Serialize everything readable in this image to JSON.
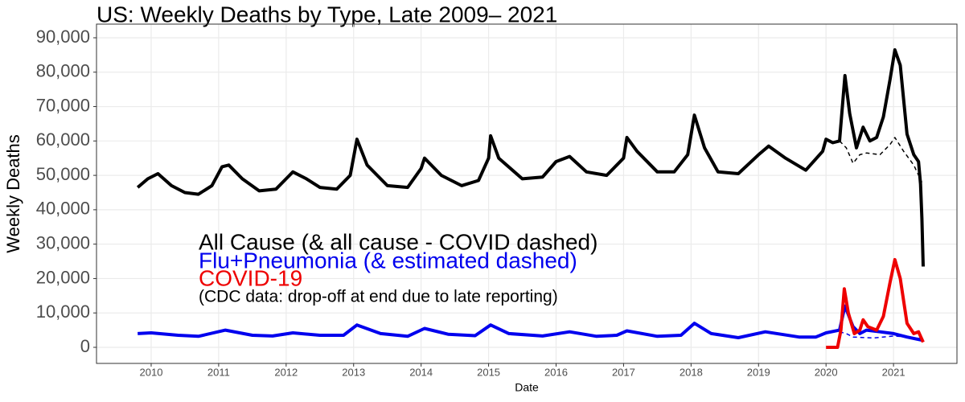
{
  "chart_data": {
    "type": "line",
    "title": "US: Weekly Deaths by Type, Late 2009– 2021",
    "x_label": "Date",
    "y_label": "Weekly Deaths",
    "xlim": [
      2009.19,
      2021.94
    ],
    "ylim": [
      -4675,
      93970
    ],
    "xticks": [
      2010,
      2011,
      2012,
      2013,
      2014,
      2015,
      2016,
      2017,
      2018,
      2019,
      2020,
      2021
    ],
    "yticks": [
      0,
      {
        "value": 10000,
        "label": "10,000"
      },
      {
        "value": 20000,
        "label": "20,000"
      },
      {
        "value": 30000,
        "label": "30,000"
      },
      {
        "value": 40000,
        "label": "40,000"
      },
      {
        "value": 50000,
        "label": "50,000"
      },
      {
        "value": 60000,
        "label": "60,000"
      },
      {
        "value": 70000,
        "label": "70,000"
      },
      {
        "value": 80000,
        "label": "80,000"
      },
      {
        "value": 90000,
        "label": "90,000"
      }
    ],
    "grid": true,
    "series": [
      {
        "color": "#000000",
        "dashed": false,
        "x": [
          2009.8,
          2009.95,
          2010.1,
          2010.3,
          2010.5,
          2010.7,
          2010.9,
          2011.05,
          2011.15,
          2011.35,
          2011.6,
          2011.85,
          2012.0,
          2012.1,
          2012.3,
          2012.5,
          2012.75,
          2012.95,
          2013.05,
          2013.2,
          2013.5,
          2013.8,
          2014.0,
          2014.05,
          2014.3,
          2014.6,
          2014.85,
          2015.0,
          2015.03,
          2015.15,
          2015.5,
          2015.8,
          2016.0,
          2016.2,
          2016.45,
          2016.75,
          2017.0,
          2017.05,
          2017.2,
          2017.5,
          2017.75,
          2017.95,
          2018.05,
          2018.2,
          2018.4,
          2018.7,
          2019.0,
          2019.15,
          2019.4,
          2019.7,
          2019.95,
          2020.0,
          2020.1,
          2020.2,
          2020.28,
          2020.35,
          2020.45,
          2020.55,
          2020.65,
          2020.75,
          2020.85,
          2020.95,
          2021.02,
          2021.1,
          2021.2,
          2021.3,
          2021.37,
          2021.4,
          2021.42,
          2021.44
        ],
        "values": [
          46500,
          49000,
          50500,
          47000,
          45000,
          44500,
          47000,
          52500,
          53000,
          49000,
          45500,
          46000,
          49000,
          51000,
          49000,
          46500,
          46000,
          50000,
          60500,
          53000,
          47000,
          46500,
          52000,
          55000,
          50000,
          47000,
          48500,
          55000,
          61500,
          55000,
          49000,
          49500,
          54000,
          55500,
          51000,
          50000,
          55000,
          61000,
          57000,
          51000,
          51000,
          56000,
          67500,
          58000,
          51000,
          50500,
          56000,
          58500,
          55000,
          51500,
          57000,
          60500,
          59500,
          60000,
          79000,
          68000,
          58000,
          64000,
          60000,
          61000,
          67000,
          78000,
          86500,
          82000,
          62000,
          56000,
          54000,
          47500,
          37500,
          23500
        ]
      },
      {
        "color": "#000000",
        "dashed": true,
        "x": [
          2020.2,
          2020.3,
          2020.4,
          2020.5,
          2020.6,
          2020.8,
          2020.95,
          2021.02,
          2021.15,
          2021.3,
          2021.42
        ],
        "values": [
          60000,
          58000,
          53500,
          56000,
          56500,
          56000,
          59000,
          61000,
          57000,
          53000,
          48000
        ]
      },
      {
        "color": "#0000ee",
        "dashed": false,
        "x": [
          2009.8,
          2010.0,
          2010.4,
          2010.7,
          2011.1,
          2011.5,
          2011.8,
          2012.1,
          2012.5,
          2012.85,
          2013.05,
          2013.4,
          2013.8,
          2014.05,
          2014.4,
          2014.8,
          2015.03,
          2015.3,
          2015.8,
          2016.2,
          2016.6,
          2016.9,
          2017.05,
          2017.5,
          2017.85,
          2018.05,
          2018.3,
          2018.7,
          2019.1,
          2019.6,
          2019.85,
          2020.0,
          2020.2,
          2020.28,
          2020.4,
          2020.5,
          2020.6,
          2020.8,
          2021.0,
          2021.2,
          2021.44
        ],
        "values": [
          4000,
          4200,
          3500,
          3200,
          5000,
          3500,
          3300,
          4200,
          3500,
          3500,
          6500,
          4000,
          3200,
          5500,
          3800,
          3400,
          6500,
          4000,
          3300,
          4500,
          3200,
          3500,
          4800,
          3200,
          3500,
          7000,
          4000,
          2800,
          4500,
          3000,
          3000,
          4200,
          5000,
          12000,
          6000,
          4000,
          5000,
          4500,
          4000,
          3000,
          2000
        ]
      },
      {
        "color": "#0000ee",
        "dashed": true,
        "x": [
          2020.2,
          2020.3,
          2020.4,
          2020.7,
          2021.0,
          2021.2,
          2021.44
        ],
        "values": [
          4500,
          4000,
          3000,
          2700,
          3300,
          3000,
          2500
        ]
      },
      {
        "color": "#ee0000",
        "dashed": false,
        "x": [
          2020.0,
          2020.17,
          2020.22,
          2020.27,
          2020.33,
          2020.42,
          2020.5,
          2020.55,
          2020.62,
          2020.75,
          2020.85,
          2020.95,
          2021.02,
          2021.1,
          2021.2,
          2021.3,
          2021.37,
          2021.44
        ],
        "values": [
          0,
          0,
          5000,
          17000,
          10000,
          4000,
          5000,
          8000,
          6000,
          5000,
          9000,
          19000,
          25500,
          20000,
          7000,
          4000,
          4500,
          1500
        ]
      }
    ],
    "annotations": [
      {
        "text": "All Cause (& all cause - COVID dashed)",
        "color": "#000000"
      },
      {
        "text": "Flu+Pneumonia (& estimated dashed)",
        "color": "#0000ee"
      },
      {
        "text": "COVID-19",
        "color": "#ee0000"
      },
      {
        "text": "(CDC data: drop-off at end due to late reporting)",
        "color": "#000000"
      }
    ]
  }
}
